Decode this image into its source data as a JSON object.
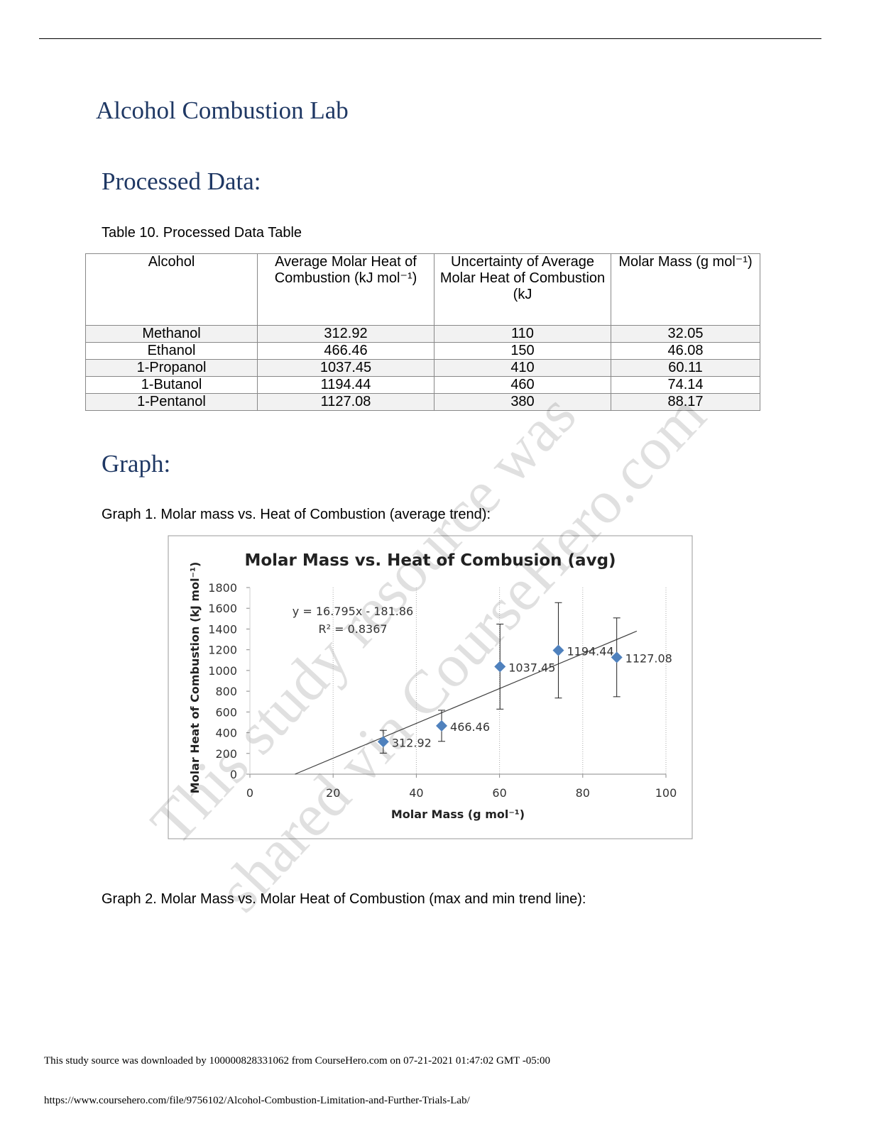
{
  "header_rule": true,
  "title": "Alcohol Combustion Lab",
  "section_processed": "Processed Data:",
  "table_caption": "Table 10. Processed Data Table",
  "table": {
    "header": [
      "Alcohol",
      "Average Molar Heat of Combustion (kJ mol⁻¹)",
      "Uncertainty of Average Molar Heat of Combustion (kJ",
      "Molar Mass (g mol⁻¹)"
    ],
    "rows": [
      [
        "Methanol",
        "312.92",
        "110",
        "32.05"
      ],
      [
        "Ethanol",
        "466.46",
        "150",
        "46.08"
      ],
      [
        "1-Propanol",
        "1037.45",
        "410",
        "60.11"
      ],
      [
        "1-Butanol",
        "1194.44",
        "460",
        "74.14"
      ],
      [
        "1-Pentanol",
        "1127.08",
        "380",
        "88.17"
      ]
    ]
  },
  "section_graph": "Graph:",
  "graph1_caption": "Graph 1. Molar mass vs. Heat of Combustion (average trend):",
  "chart_data": {
    "type": "scatter",
    "title": "Molar Mass vs. Heat of Combusion (avg)",
    "x_label": "Molar Mass (g mol⁻¹)",
    "y_label": "Molar Heat of Combustion (kJ mol⁻¹)",
    "xlim": [
      0,
      100
    ],
    "xticks": [
      0,
      20,
      40,
      60,
      80,
      100
    ],
    "ylim": [
      0,
      1800
    ],
    "yticks": [
      0,
      200,
      400,
      600,
      800,
      1000,
      1200,
      1400,
      1600,
      1800
    ],
    "grid": true,
    "series": [
      {
        "color": "#4f81bd",
        "x": [
          32.05,
          46.08,
          60.11,
          74.14,
          88.17
        ],
        "values": [
          312.92,
          466.46,
          1037.45,
          1194.44,
          1127.08
        ],
        "errors": [
          110,
          150,
          410,
          460,
          380
        ]
      }
    ],
    "trendline": {
      "x": [
        10.83,
        93
      ],
      "values": [
        0,
        1380
      ],
      "color": "#404040"
    },
    "annotations": [
      "y = 16.795x - 181.86",
      "R² = 0.8367"
    ]
  },
  "graph2_caption": "Graph 2. Molar Mass vs. Molar Heat of Combustion (max and min trend line):",
  "watermark": [
    "This study resource was",
    "shared via CourseHero.com"
  ],
  "footer": [
    "This study source was downloaded by 100000828331062 from CourseHero.com on 07-21-2021 01:47:02 GMT -05:00",
    "https://www.coursehero.com/file/9756102/Alcohol-Combustion-Limitation-and-Further-Trials-Lab/"
  ]
}
